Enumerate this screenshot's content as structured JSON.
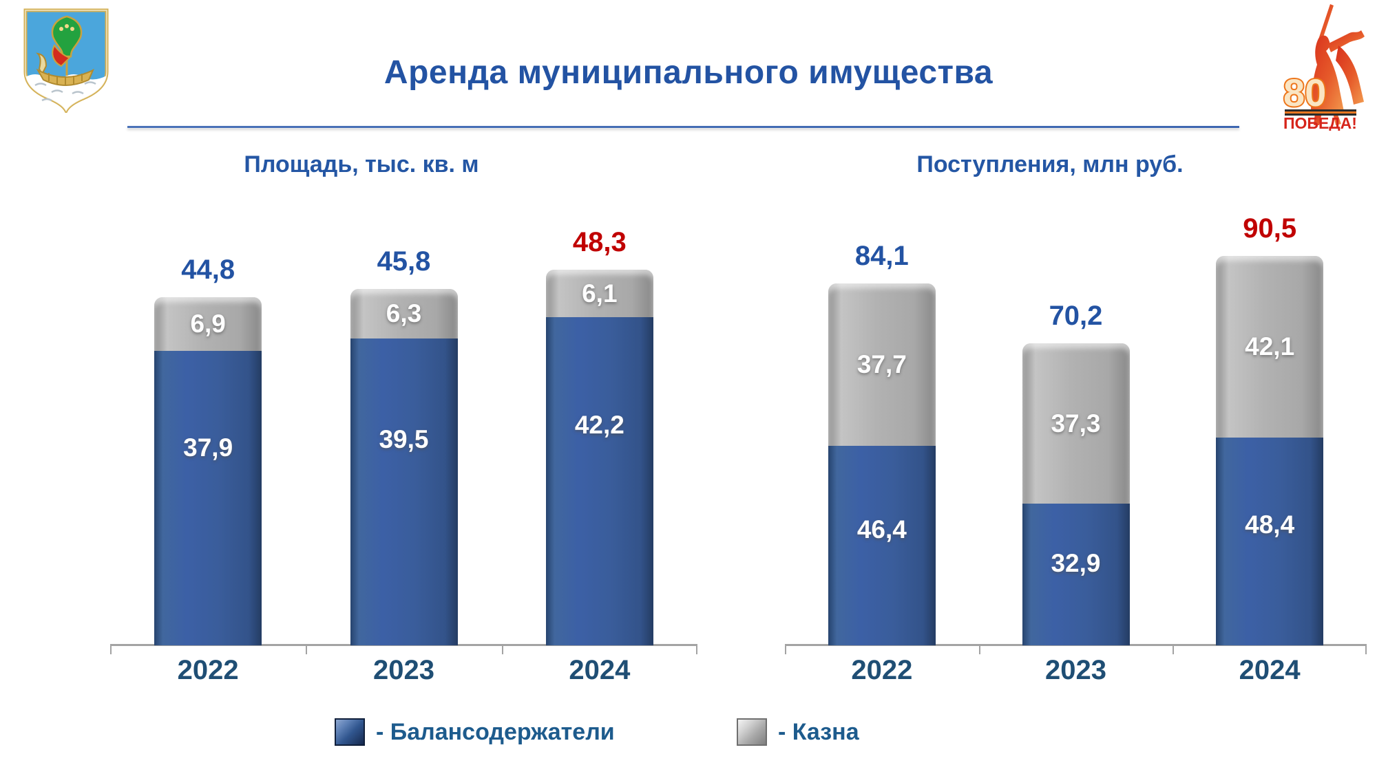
{
  "slide": {
    "title": "Аренда муниципального имущества",
    "emblem_icon": "naberezhnye-chelny-coat-of-arms",
    "victory_logo": {
      "number": "80",
      "label": "ПОБЕДА!"
    }
  },
  "legend": [
    {
      "label": "- Балансодержатели",
      "color": "#31568f"
    },
    {
      "label": "- Казна",
      "color": "#acacac"
    }
  ],
  "chart_data": [
    {
      "type": "bar",
      "stacked": true,
      "title": "Площадь, тыс. кв. м",
      "categories": [
        "2022",
        "2023",
        "2024"
      ],
      "series": [
        {
          "name": "Балансодержатели",
          "color": "#3a5d9b",
          "values": [
            37.9,
            39.5,
            42.2
          ],
          "labels": [
            "37,9",
            "39,5",
            "42,2"
          ]
        },
        {
          "name": "Казна",
          "color": "#acacac",
          "values": [
            6.9,
            6.3,
            6.1
          ],
          "labels": [
            "6,9",
            "6,3",
            "6,1"
          ]
        }
      ],
      "totals": {
        "values": [
          44.8,
          45.8,
          48.3
        ],
        "labels": [
          "44,8",
          "45,8",
          "48,3"
        ],
        "colors": [
          "#2353a3",
          "#2353a3",
          "#c00000"
        ]
      },
      "ylim": [
        0,
        50
      ],
      "grid": false,
      "legend_position": "bottom"
    },
    {
      "type": "bar",
      "stacked": true,
      "title": "Поступления, млн руб.",
      "categories": [
        "2022",
        "2023",
        "2024"
      ],
      "series": [
        {
          "name": "Балансодержатели",
          "color": "#3a5d9b",
          "values": [
            46.4,
            32.9,
            48.4
          ],
          "labels": [
            "46,4",
            "32,9",
            "48,4"
          ]
        },
        {
          "name": "Казна",
          "color": "#acacac",
          "values": [
            37.7,
            37.3,
            42.1
          ],
          "labels": [
            "37,7",
            "37,3",
            "42,1"
          ]
        }
      ],
      "totals": {
        "values": [
          84.1,
          70.2,
          90.5
        ],
        "labels": [
          "84,1",
          "70,2",
          "90,5"
        ],
        "colors": [
          "#2353a3",
          "#2353a3",
          "#c00000"
        ]
      },
      "ylim": [
        0,
        92
      ],
      "grid": false,
      "legend_position": "bottom"
    }
  ],
  "colors": {
    "axis": "#a3a3a3",
    "title": "#2353a3",
    "year_label": "#1f4e74",
    "highlight_red": "#c00000"
  }
}
